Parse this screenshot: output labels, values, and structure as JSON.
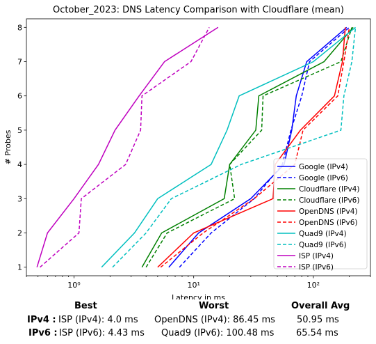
{
  "chart_data": {
    "type": "line",
    "title": "October_2023: DNS Latency Comparison with Cloudflare (mean)",
    "xlabel": "Latency in ms",
    "ylabel": "# Probes",
    "xscale": "log",
    "xlim": [
      0.4,
      300
    ],
    "ylim": [
      0.75,
      8.25
    ],
    "x_ticks": [
      {
        "value": 1,
        "label": "10⁰"
      },
      {
        "value": 10,
        "label": "10¹"
      },
      {
        "value": 100,
        "label": "10²"
      }
    ],
    "y_ticks": [
      1,
      2,
      3,
      4,
      5,
      6,
      7,
      8
    ],
    "legend_position": "lower-right",
    "series": [
      {
        "name": "Google (IPv4)",
        "color": "#0000ff",
        "dash": "solid",
        "x": [
          6.2,
          11,
          30,
          57,
          66,
          72,
          88,
          190
        ],
        "y": [
          1,
          2,
          3,
          4,
          5,
          6,
          7,
          8
        ]
      },
      {
        "name": "Google (IPv6)",
        "color": "#0000ff",
        "dash": "dashed",
        "x": [
          7.6,
          14,
          32,
          55,
          65,
          80,
          93,
          200
        ],
        "y": [
          1,
          2,
          3,
          4,
          5,
          6,
          7,
          8
        ]
      },
      {
        "name": "Cloudflare (IPv4)",
        "color": "#008000",
        "dash": "solid",
        "x": [
          3.7,
          5.4,
          18,
          20,
          33,
          35,
          123,
          215
        ],
        "y": [
          1,
          2,
          3,
          4,
          5,
          6,
          7,
          8
        ]
      },
      {
        "name": "Cloudflare (IPv6)",
        "color": "#008000",
        "dash": "dashed",
        "x": [
          4.0,
          6.0,
          22,
          20,
          37,
          38,
          170,
          210
        ],
        "y": [
          1,
          2,
          3,
          4,
          5,
          6,
          7,
          8
        ]
      },
      {
        "name": "OpenDNS (IPv4)",
        "color": "#ff0000",
        "dash": "solid",
        "x": [
          5.0,
          10,
          46,
          48,
          78,
          150,
          175,
          185
        ],
        "y": [
          1,
          2,
          3,
          4,
          5,
          6,
          7,
          8
        ]
      },
      {
        "name": "OpenDNS (IPv6)",
        "color": "#ff0000",
        "dash": "dashed",
        "x": [
          5.3,
          12,
          32,
          70,
          82,
          160,
          180,
          200
        ],
        "y": [
          1,
          2,
          3,
          4,
          5,
          6,
          7,
          8
        ]
      },
      {
        "name": "Quad9 (IPv4)",
        "color": "#00bfbf",
        "dash": "solid",
        "x": [
          1.7,
          3.2,
          5.0,
          14,
          19,
          24,
          100,
          225
        ],
        "y": [
          1,
          2,
          3,
          4,
          5,
          6,
          7,
          8
        ]
      },
      {
        "name": "Quad9 (IPv6)",
        "color": "#00bfbf",
        "dash": "dashed",
        "x": [
          2.1,
          4.0,
          6.5,
          25,
          170,
          180,
          210,
          225
        ],
        "y": [
          1,
          2,
          3,
          4,
          5,
          6,
          7,
          8
        ]
      },
      {
        "name": "ISP (IPv4)",
        "color": "#bf00bf",
        "dash": "solid",
        "x": [
          0.49,
          0.6,
          1.0,
          1.6,
          2.2,
          3.5,
          5.7,
          16
        ],
        "y": [
          1,
          2,
          3,
          4,
          5,
          6,
          7,
          8
        ]
      },
      {
        "name": "ISP (IPv6)",
        "color": "#bf00bf",
        "dash": "dashed",
        "x": [
          0.52,
          1.1,
          1.15,
          2.7,
          3.6,
          3.7,
          9.5,
          13.5
        ],
        "y": [
          1,
          2,
          3,
          4,
          5,
          6,
          7,
          8
        ]
      }
    ]
  },
  "summary": {
    "headers": {
      "best": "Best",
      "worst": "Worst",
      "avg": "Overall Avg"
    },
    "rows": [
      {
        "label": "IPv4 :",
        "best": "ISP (IPv4): 4.0 ms",
        "worst": "OpenDNS (IPv4): 86.45 ms",
        "avg": "50.95 ms"
      },
      {
        "label": "IPv6 :",
        "best": "ISP (IPv6): 4.43 ms",
        "worst": "Quad9 (IPv6): 100.48 ms",
        "avg": "65.54 ms"
      }
    ]
  }
}
